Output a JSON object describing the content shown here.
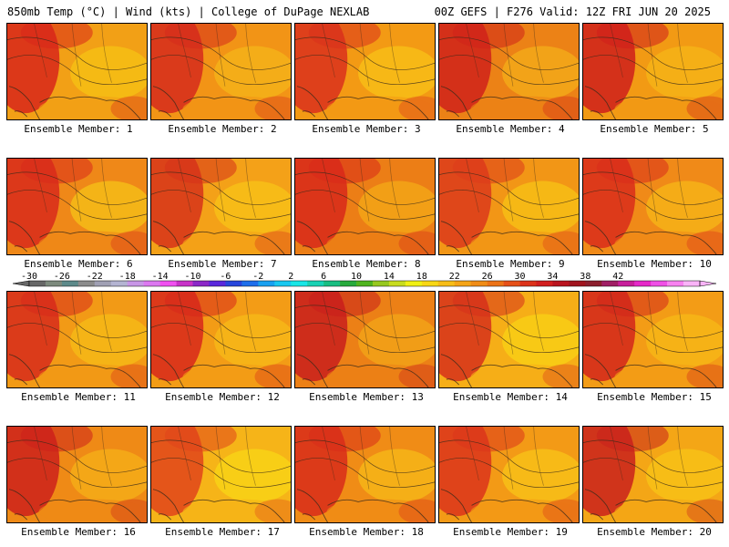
{
  "header": {
    "left": "850mb Temp (°C) | Wind (kts) | College of DuPage NEXLAB",
    "right": "00Z GEFS | F276 Valid: 12Z FRI JUN 20 2025"
  },
  "members": [
    {
      "label": "Ensemble Member: 1",
      "base": "#f2a016",
      "hot": "#d8261a",
      "cool": "#f7c414"
    },
    {
      "label": "Ensemble Member: 2",
      "base": "#f29416",
      "hot": "#d62a1c",
      "cool": "#f5b819"
    },
    {
      "label": "Ensemble Member: 3",
      "base": "#f39a14",
      "hot": "#d9301c",
      "cool": "#f8c417"
    },
    {
      "label": "Ensemble Member: 4",
      "base": "#ec8216",
      "hot": "#d0221a",
      "cool": "#f5b019"
    },
    {
      "label": "Ensemble Member: 5",
      "base": "#f29a14",
      "hot": "#cf1e1b",
      "cool": "#f6b817"
    },
    {
      "label": "Ensemble Member: 6",
      "base": "#ef8818",
      "hot": "#d82a1b",
      "cool": "#f7c717"
    },
    {
      "label": "Ensemble Member: 7",
      "base": "#f4a118",
      "hot": "#d6321a",
      "cool": "#f8c617"
    },
    {
      "label": "Ensemble Member: 8",
      "base": "#ec7e16",
      "hot": "#d8281a",
      "cool": "#f5ae17"
    },
    {
      "label": "Ensemble Member: 9",
      "base": "#f29616",
      "hot": "#dc3a1b",
      "cool": "#f8c616"
    },
    {
      "label": "Ensemble Member: 10",
      "base": "#f08a18",
      "hot": "#d92b1b",
      "cool": "#f7bb17"
    },
    {
      "label": "Ensemble Member: 11",
      "base": "#f29a16",
      "hot": "#d72a1b",
      "cool": "#f7bf17"
    },
    {
      "label": "Ensemble Member: 12",
      "base": "#f39c16",
      "hot": "#d7281b",
      "cool": "#f6bd18"
    },
    {
      "label": "Ensemble Member: 13",
      "base": "#ec8016",
      "hot": "#c91e1c",
      "cool": "#f4aa18"
    },
    {
      "label": "Ensemble Member: 14",
      "base": "#f6ae17",
      "hot": "#d6301b",
      "cool": "#f9d416"
    },
    {
      "label": "Ensemble Member: 15",
      "base": "#f39c16",
      "hot": "#d2261b",
      "cool": "#f7bc17"
    },
    {
      "label": "Ensemble Member: 16",
      "base": "#ef8a16",
      "hot": "#cc201b",
      "cool": "#f6b318"
    },
    {
      "label": "Ensemble Member: 17",
      "base": "#f6b418",
      "hot": "#e0441b",
      "cool": "#f9d816"
    },
    {
      "label": "Ensemble Member: 18",
      "base": "#f08c16",
      "hot": "#d82c1a",
      "cool": "#f7bd18"
    },
    {
      "label": "Ensemble Member: 19",
      "base": "#f39a16",
      "hot": "#da341b",
      "cool": "#f8c818"
    },
    {
      "label": "Ensemble Member: 20",
      "base": "#f4a616",
      "hot": "#c9201c",
      "cool": "#f8c817"
    }
  ],
  "colorbar": {
    "ticks": [
      "-30",
      "-26",
      "-22",
      "-18",
      "-14",
      "-10",
      "-6",
      "-2",
      "2",
      "6",
      "10",
      "14",
      "18",
      "22",
      "26",
      "30",
      "34",
      "38",
      "42"
    ],
    "colors": [
      "#676767",
      "#7d8a7d",
      "#5d8a8a",
      "#8c8c8c",
      "#a0a0b4",
      "#b4b4d2",
      "#c896e6",
      "#dc78f0",
      "#f050f0",
      "#c832c8",
      "#8c28c8",
      "#5a28dc",
      "#2846dc",
      "#1e6eeb",
      "#19a0f0",
      "#19c8f0",
      "#19e6e6",
      "#19d2b4",
      "#19be82",
      "#28aa3c",
      "#50b41e",
      "#96c81e",
      "#c8dc1e",
      "#f0f014",
      "#f8d714",
      "#f7bd17",
      "#f5a416",
      "#f08c16",
      "#ec7216",
      "#e65018",
      "#dc321a",
      "#d21e1e",
      "#b9141e",
      "#a0141e",
      "#8c1e2d",
      "#a01e64",
      "#c81e9b",
      "#e628c8",
      "#f050e6",
      "#f882f0",
      "#fab4f8"
    ]
  }
}
